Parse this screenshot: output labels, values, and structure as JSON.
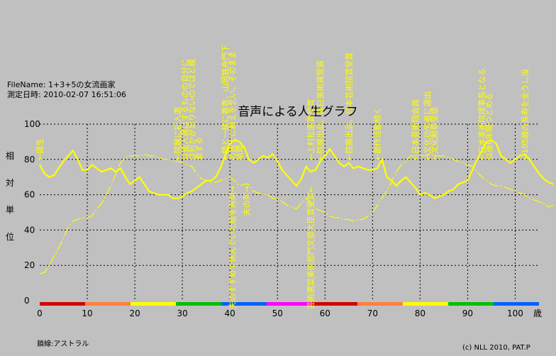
{
  "header": {
    "file_name": "FileName: 1+3+5の女流画家",
    "measured": "測定日時: 2010-02-07 16:51:06"
  },
  "footer": {
    "baseline_note": "鎖線:アストラル",
    "copyright": "(c) NLL 2010, PAT.P"
  },
  "chart_data": {
    "type": "line",
    "title": "音声による人生グラフ",
    "ylabel": "相対単位",
    "xlabel": "歳",
    "xlim": [
      0,
      105
    ],
    "ylim": [
      0,
      100
    ],
    "xticks": [
      0,
      10,
      20,
      30,
      40,
      50,
      60,
      70,
      80,
      90,
      100
    ],
    "yticks": [
      0,
      20,
      40,
      60,
      80,
      100
    ],
    "grid": true,
    "colors": {
      "solid": "#ffff00",
      "dashed": "#ffff00",
      "grid": "#000000",
      "background": "#c0c0c0"
    },
    "series": [
      {
        "style": "solid",
        "points": [
          [
            0,
            77
          ],
          [
            1,
            72
          ],
          [
            2,
            70
          ],
          [
            3,
            71
          ],
          [
            4,
            75
          ],
          [
            5,
            79
          ],
          [
            6,
            82
          ],
          [
            7,
            85
          ],
          [
            8,
            80
          ],
          [
            9,
            74
          ],
          [
            10,
            74
          ],
          [
            11,
            77
          ],
          [
            12,
            75
          ],
          [
            13,
            73
          ],
          [
            14,
            74
          ],
          [
            15,
            75
          ],
          [
            16,
            73
          ],
          [
            17,
            75
          ],
          [
            18,
            70
          ],
          [
            19,
            66
          ],
          [
            20,
            68
          ],
          [
            21,
            70
          ],
          [
            22,
            66
          ],
          [
            23,
            62
          ],
          [
            24,
            61
          ],
          [
            25,
            60
          ],
          [
            26,
            60
          ],
          [
            27,
            60
          ],
          [
            28,
            58
          ],
          [
            29,
            58
          ],
          [
            30,
            59
          ],
          [
            31,
            61
          ],
          [
            32,
            62
          ],
          [
            33,
            64
          ],
          [
            34,
            66
          ],
          [
            35,
            68
          ],
          [
            36,
            68
          ],
          [
            37,
            70
          ],
          [
            38,
            75
          ],
          [
            39,
            82
          ],
          [
            40,
            89
          ],
          [
            41,
            91
          ],
          [
            42,
            90
          ],
          [
            43,
            87
          ],
          [
            44,
            80
          ],
          [
            45,
            78
          ],
          [
            46,
            80
          ],
          [
            47,
            82
          ],
          [
            48,
            81
          ],
          [
            49,
            83
          ],
          [
            50,
            79
          ],
          [
            51,
            74
          ],
          [
            52,
            71
          ],
          [
            53,
            68
          ],
          [
            54,
            65
          ],
          [
            55,
            69
          ],
          [
            56,
            76
          ],
          [
            57,
            73
          ],
          [
            58,
            74
          ],
          [
            59,
            79
          ],
          [
            60,
            82
          ],
          [
            61,
            86
          ],
          [
            62,
            82
          ],
          [
            63,
            78
          ],
          [
            64,
            76
          ],
          [
            65,
            78
          ],
          [
            66,
            75
          ],
          [
            67,
            76
          ],
          [
            68,
            75
          ],
          [
            69,
            74
          ],
          [
            70,
            74
          ],
          [
            71,
            75
          ],
          [
            72,
            80
          ],
          [
            73,
            70
          ],
          [
            74,
            68
          ],
          [
            75,
            65
          ],
          [
            76,
            68
          ],
          [
            77,
            70
          ],
          [
            78,
            67
          ],
          [
            79,
            64
          ],
          [
            80,
            60
          ],
          [
            81,
            61
          ],
          [
            82,
            60
          ],
          [
            83,
            58
          ],
          [
            84,
            59
          ],
          [
            85,
            60
          ],
          [
            86,
            62
          ],
          [
            87,
            63
          ],
          [
            88,
            66
          ],
          [
            89,
            67
          ],
          [
            90,
            68
          ],
          [
            91,
            74
          ],
          [
            92,
            80
          ],
          [
            93,
            85
          ],
          [
            94,
            90
          ],
          [
            95,
            91
          ],
          [
            96,
            89
          ],
          [
            97,
            82
          ],
          [
            98,
            80
          ],
          [
            99,
            78
          ],
          [
            100,
            80
          ],
          [
            101,
            82
          ],
          [
            102,
            83
          ],
          [
            103,
            80
          ],
          [
            104,
            76
          ],
          [
            105,
            72
          ],
          [
            106,
            69
          ],
          [
            107,
            67
          ],
          [
            108,
            66
          ]
        ]
      },
      {
        "style": "dashed",
        "points": [
          [
            0,
            15
          ],
          [
            1,
            16
          ],
          [
            2,
            20
          ],
          [
            3,
            25
          ],
          [
            4,
            30
          ],
          [
            5,
            35
          ],
          [
            6,
            42
          ],
          [
            7,
            45
          ],
          [
            8,
            46
          ],
          [
            9,
            47
          ],
          [
            10,
            47
          ],
          [
            11,
            48
          ],
          [
            12,
            52
          ],
          [
            13,
            55
          ],
          [
            14,
            60
          ],
          [
            15,
            65
          ],
          [
            16,
            72
          ],
          [
            17,
            78
          ],
          [
            18,
            81
          ],
          [
            19,
            82
          ],
          [
            20,
            82
          ],
          [
            21,
            82
          ],
          [
            22,
            83
          ],
          [
            23,
            82
          ],
          [
            24,
            82
          ],
          [
            25,
            81
          ],
          [
            26,
            80
          ],
          [
            27,
            80
          ],
          [
            28,
            79
          ],
          [
            29,
            79
          ],
          [
            30,
            78
          ],
          [
            31,
            77
          ],
          [
            32,
            76
          ],
          [
            33,
            72
          ],
          [
            34,
            69
          ],
          [
            35,
            68
          ],
          [
            36,
            67
          ],
          [
            37,
            67
          ],
          [
            38,
            68
          ],
          [
            39,
            69
          ],
          [
            40,
            70
          ],
          [
            41,
            68
          ],
          [
            42,
            65
          ],
          [
            43,
            66
          ],
          [
            44,
            66
          ],
          [
            45,
            62
          ],
          [
            46,
            61
          ],
          [
            47,
            60
          ],
          [
            48,
            60
          ],
          [
            49,
            58
          ],
          [
            50,
            58
          ],
          [
            51,
            56
          ],
          [
            52,
            54
          ],
          [
            53,
            53
          ],
          [
            54,
            52
          ],
          [
            55,
            55
          ],
          [
            56,
            58
          ],
          [
            57,
            55
          ],
          [
            58,
            52
          ],
          [
            59,
            51
          ],
          [
            60,
            50
          ],
          [
            61,
            48
          ],
          [
            62,
            47
          ],
          [
            63,
            47
          ],
          [
            64,
            46
          ],
          [
            65,
            46
          ],
          [
            66,
            45
          ],
          [
            67,
            46
          ],
          [
            68,
            46
          ],
          [
            69,
            48
          ],
          [
            70,
            50
          ],
          [
            71,
            54
          ],
          [
            72,
            58
          ],
          [
            73,
            62
          ],
          [
            74,
            67
          ],
          [
            75,
            73
          ],
          [
            76,
            77
          ],
          [
            77,
            79
          ],
          [
            78,
            82
          ],
          [
            79,
            82
          ],
          [
            80,
            82
          ],
          [
            81,
            82
          ],
          [
            82,
            83
          ],
          [
            83,
            82
          ],
          [
            84,
            82
          ],
          [
            85,
            82
          ],
          [
            86,
            81
          ],
          [
            87,
            80
          ],
          [
            88,
            79
          ],
          [
            89,
            78
          ],
          [
            90,
            77
          ],
          [
            91,
            76
          ],
          [
            92,
            73
          ],
          [
            93,
            70
          ],
          [
            94,
            68
          ],
          [
            95,
            66
          ],
          [
            96,
            65
          ],
          [
            97,
            65
          ],
          [
            98,
            64
          ],
          [
            99,
            63
          ],
          [
            100,
            62
          ],
          [
            101,
            61
          ],
          [
            102,
            60
          ],
          [
            103,
            58
          ],
          [
            104,
            57
          ],
          [
            105,
            56
          ],
          [
            106,
            55
          ],
          [
            107,
            53
          ],
          [
            108,
            54
          ]
        ]
      }
    ],
    "annotations": [
      {
        "text": "←誕生",
        "x": 0,
        "pos": "top"
      },
      {
        "text": "←院展に初入選",
        "x": 29,
        "pos": "top"
      },
      {
        "text": "以後入選はするものの自分に",
        "x": 30.5,
        "pos": "top"
      },
      {
        "text": "は何かが足りないのではと模",
        "x": 32,
        "pos": "top"
      },
      {
        "text": "索する",
        "x": 33.5,
        "pos": "top"
      },
      {
        "text": "←師と一緒に著香、山岡鉄舟門下",
        "x": 39,
        "pos": "top"
      },
      {
        "text": "の居士に教えを乞い、そのまま",
        "x": 40.5,
        "pos": "top"
      },
      {
        "text": "結婚",
        "x": 42,
        "pos": "top"
      },
      {
        "text": "←上村松園賞受賞",
        "x": 57,
        "pos": "top"
      },
      {
        "text": "←院展出品、毎日美術賞受賞",
        "x": 59,
        "pos": "top"
      },
      {
        "text": "←院展出品、日本芸術院賞受賞",
        "x": 65,
        "pos": "top"
      },
      {
        "text": "←創作活動続く",
        "x": 71,
        "pos": "top"
      },
      {
        "text": "←日本芸術院会員",
        "x": 79,
        "pos": "top"
      },
      {
        "text": "←文化功労者に選出",
        "x": 81.5,
        "pos": "top"
      },
      {
        "text": "←文化勲章受章",
        "x": 83,
        "pos": "top"
      },
      {
        "text": "←日本美術院理事長となる",
        "x": 93,
        "pos": "top"
      },
      {
        "text": "以後6年間つとめる",
        "x": 94.5,
        "pos": "top"
      },
      {
        "text": "←105歳の長寿を全うし没",
        "x": 102,
        "pos": "top"
      },
      {
        "text": "夫のすすめで休んでいた絵を再開→",
        "x": 40.5,
        "pos": "bottom"
      },
      {
        "text": "夫の死→",
        "x": 43.5,
        "pos": "bottom"
      },
      {
        "text": "芸術選奨美術部門文部大臣賞受賞←",
        "x": 57,
        "pos": "bottom"
      }
    ],
    "age_band_colors": [
      "#d40000",
      "#ff8040",
      "#ffff00",
      "#00c000",
      "#0060ff",
      "#ff00ff",
      "#d40000",
      "#ff8040",
      "#ffff00",
      "#00c000",
      "#0060ff"
    ]
  }
}
